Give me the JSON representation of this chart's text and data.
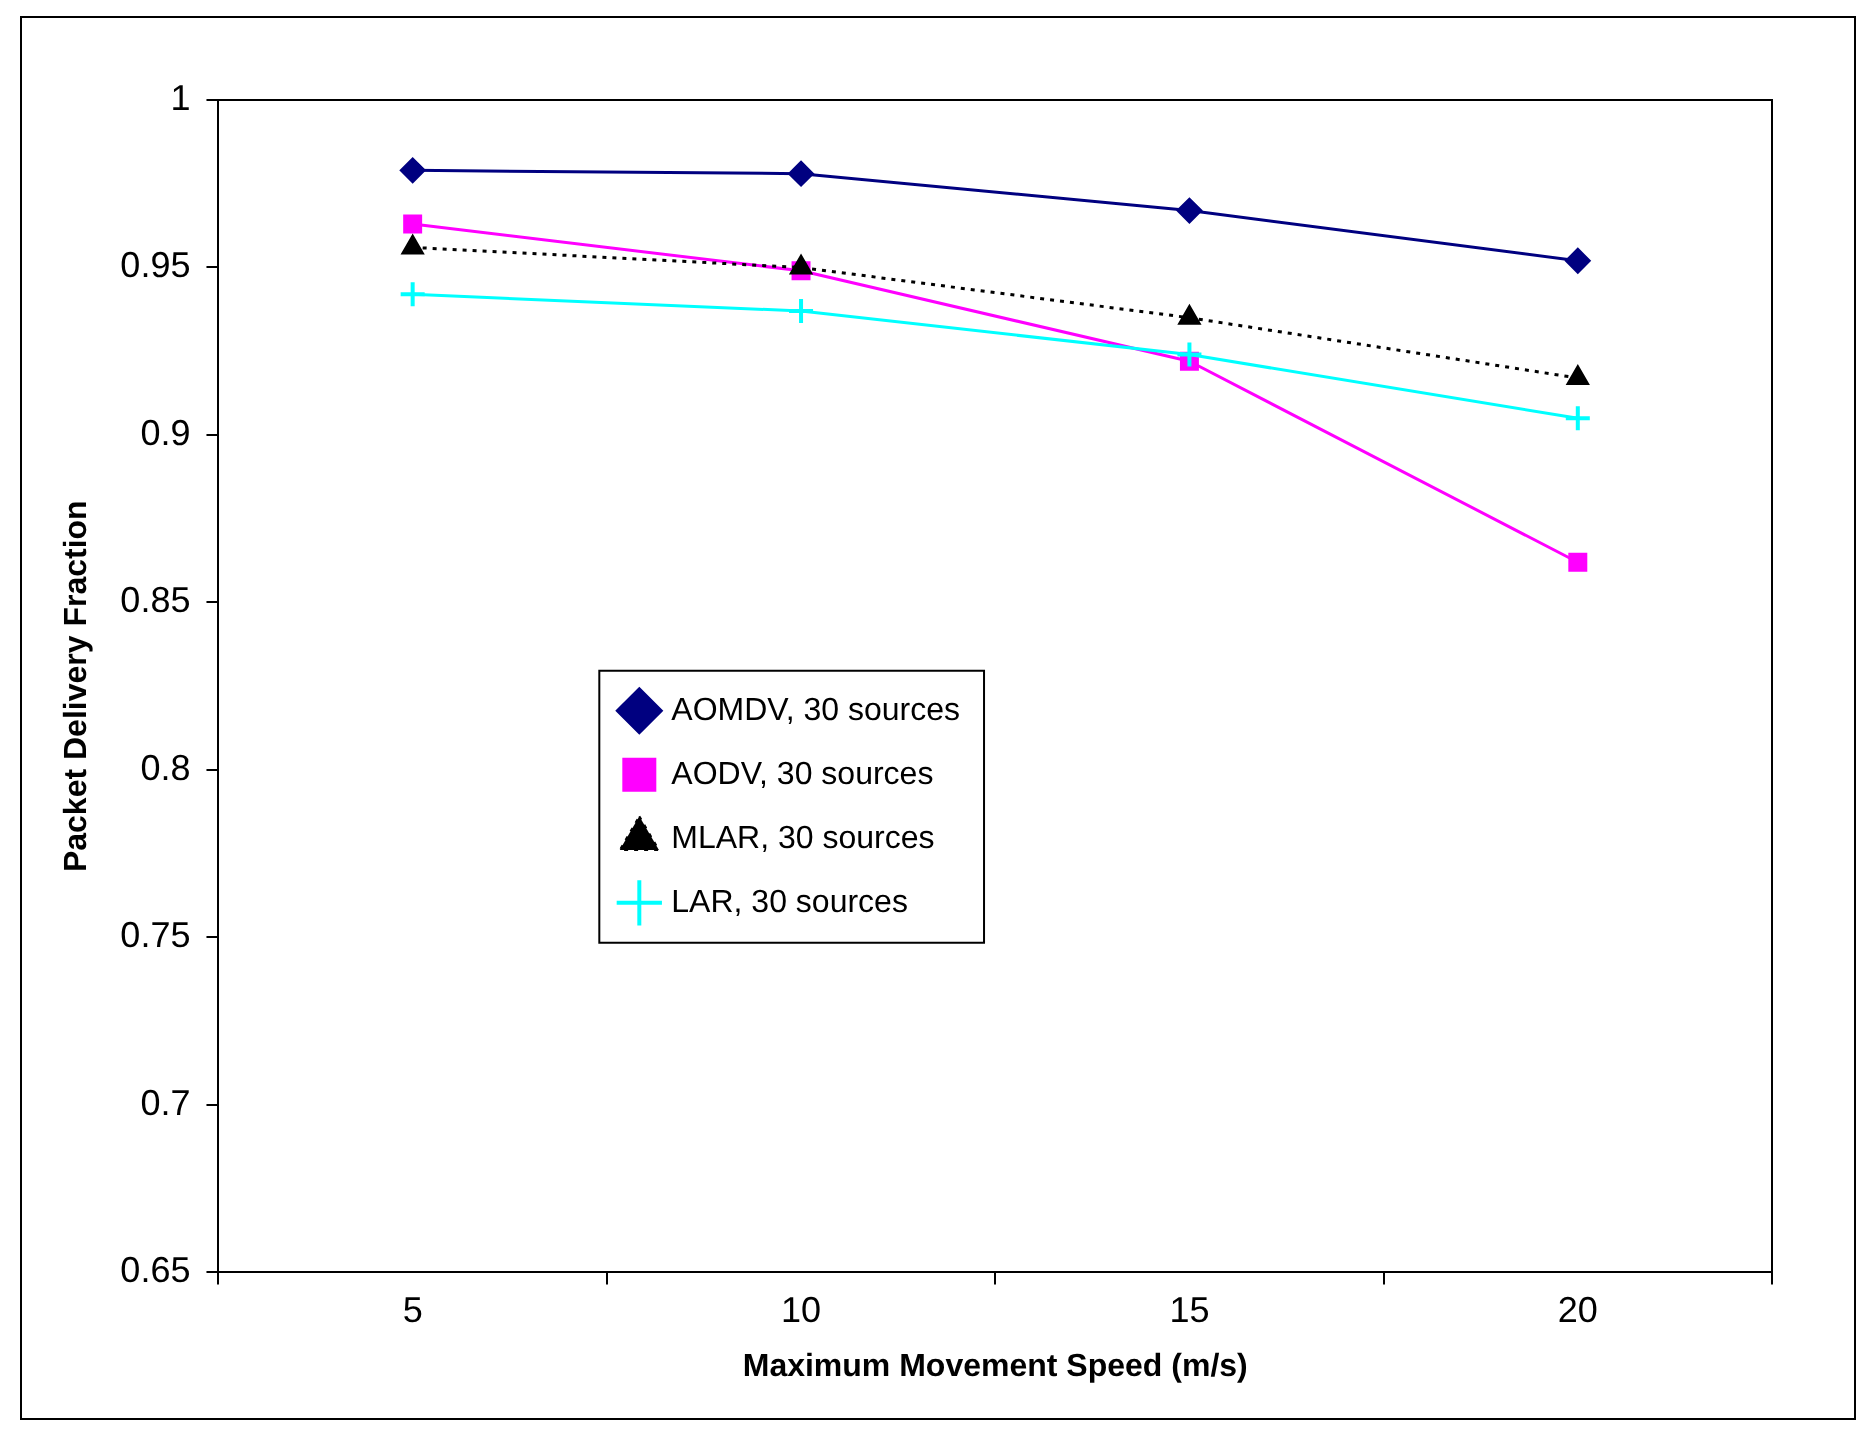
{
  "chart_data": {
    "type": "line",
    "xlabel": "Maximum Movement Speed (m/s)",
    "ylabel": "Packet Delivery Fraction",
    "categories": [
      "5",
      "10",
      "15",
      "20"
    ],
    "ylim": [
      0.65,
      1
    ],
    "yticks": [
      0.65,
      0.7,
      0.75,
      0.8,
      0.85,
      0.9,
      0.95,
      1
    ],
    "grid": false,
    "legend": "center left",
    "series": [
      {
        "name": "AOMDV, 30 sources",
        "color": "#000080",
        "marker": "diamond",
        "line_style": "solid",
        "values": [
          0.979,
          0.978,
          0.967,
          0.952
        ]
      },
      {
        "name": "AODV, 30 sources",
        "color": "#ff00ff",
        "marker": "square",
        "line_style": "solid",
        "values": [
          0.963,
          0.949,
          0.922,
          0.862
        ]
      },
      {
        "name": "MLAR, 30 sources",
        "color": "#000000",
        "marker": "triangle",
        "line_style": "dotted",
        "values": [
          0.956,
          0.95,
          0.935,
          0.917
        ]
      },
      {
        "name": "LAR, 30 sources",
        "color": "#00ffff",
        "marker": "cross",
        "line_style": "solid",
        "values": [
          0.942,
          0.937,
          0.924,
          0.905
        ]
      }
    ]
  }
}
